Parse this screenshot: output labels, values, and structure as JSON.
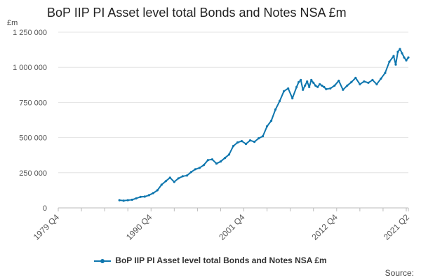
{
  "chart_data": {
    "type": "line",
    "title": "BoP IIP PI Asset level total Bonds and Notes NSA £m",
    "y_unit": "£m",
    "ylim": [
      0,
      1250000
    ],
    "y_ticks": [
      {
        "value": 0,
        "label": "0"
      },
      {
        "value": 250000,
        "label": "250 000"
      },
      {
        "value": 500000,
        "label": "500 000"
      },
      {
        "value": 750000,
        "label": "750 000"
      },
      {
        "value": 1000000,
        "label": "1 000 000"
      },
      {
        "value": 1250000,
        "label": "1 250 000"
      }
    ],
    "x_range": [
      1979.75,
      2021.25
    ],
    "x_ticks": [
      {
        "value": 1979.75,
        "label": "1979 Q4"
      },
      {
        "value": 1990.75,
        "label": "1990 Q4"
      },
      {
        "value": 2001.75,
        "label": "2001 Q4"
      },
      {
        "value": 2012.75,
        "label": "2012 Q4"
      },
      {
        "value": 2021.25,
        "label": "2021 Q2"
      }
    ],
    "grid": true,
    "legend_position": "bottom",
    "series": [
      {
        "name": "BoP IIP PI Asset level total Bonds and Notes NSA £m",
        "color": "#0e76ae",
        "x": [
          1987.0,
          1987.5,
          1988.0,
          1988.5,
          1989.0,
          1989.5,
          1990.0,
          1990.5,
          1991.0,
          1991.5,
          1992.0,
          1992.5,
          1993.0,
          1993.5,
          1994.0,
          1994.5,
          1995.0,
          1995.5,
          1996.0,
          1996.5,
          1997.0,
          1997.5,
          1998.0,
          1998.5,
          1999.0,
          1999.5,
          2000.0,
          2000.5,
          2001.0,
          2001.5,
          2002.0,
          2002.5,
          2003.0,
          2003.5,
          2004.0,
          2004.5,
          2005.0,
          2005.5,
          2006.0,
          2006.5,
          2007.0,
          2007.5,
          2008.0,
          2008.25,
          2008.5,
          2008.75,
          2009.0,
          2009.25,
          2009.5,
          2009.75,
          2010.0,
          2010.25,
          2010.5,
          2010.75,
          2011.0,
          2011.25,
          2011.5,
          2012.0,
          2012.5,
          2013.0,
          2013.5,
          2014.0,
          2014.5,
          2015.0,
          2015.5,
          2016.0,
          2016.5,
          2017.0,
          2017.5,
          2018.0,
          2018.5,
          2019.0,
          2019.5,
          2019.75,
          2020.0,
          2020.25,
          2020.5,
          2020.75,
          2021.0,
          2021.25
        ],
        "values": [
          55000,
          52000,
          55000,
          58000,
          68000,
          78000,
          80000,
          90000,
          105000,
          125000,
          165000,
          190000,
          215000,
          185000,
          210000,
          225000,
          230000,
          255000,
          275000,
          285000,
          305000,
          340000,
          345000,
          315000,
          330000,
          355000,
          380000,
          440000,
          465000,
          475000,
          455000,
          480000,
          470000,
          495000,
          510000,
          580000,
          620000,
          700000,
          760000,
          830000,
          850000,
          780000,
          860000,
          895000,
          910000,
          840000,
          870000,
          900000,
          860000,
          910000,
          890000,
          870000,
          860000,
          880000,
          870000,
          860000,
          845000,
          850000,
          870000,
          905000,
          840000,
          870000,
          895000,
          925000,
          880000,
          900000,
          890000,
          910000,
          880000,
          920000,
          960000,
          1040000,
          1080000,
          1020000,
          1110000,
          1130000,
          1100000,
          1070000,
          1050000,
          1070000
        ]
      }
    ]
  },
  "source_label": "Source:"
}
